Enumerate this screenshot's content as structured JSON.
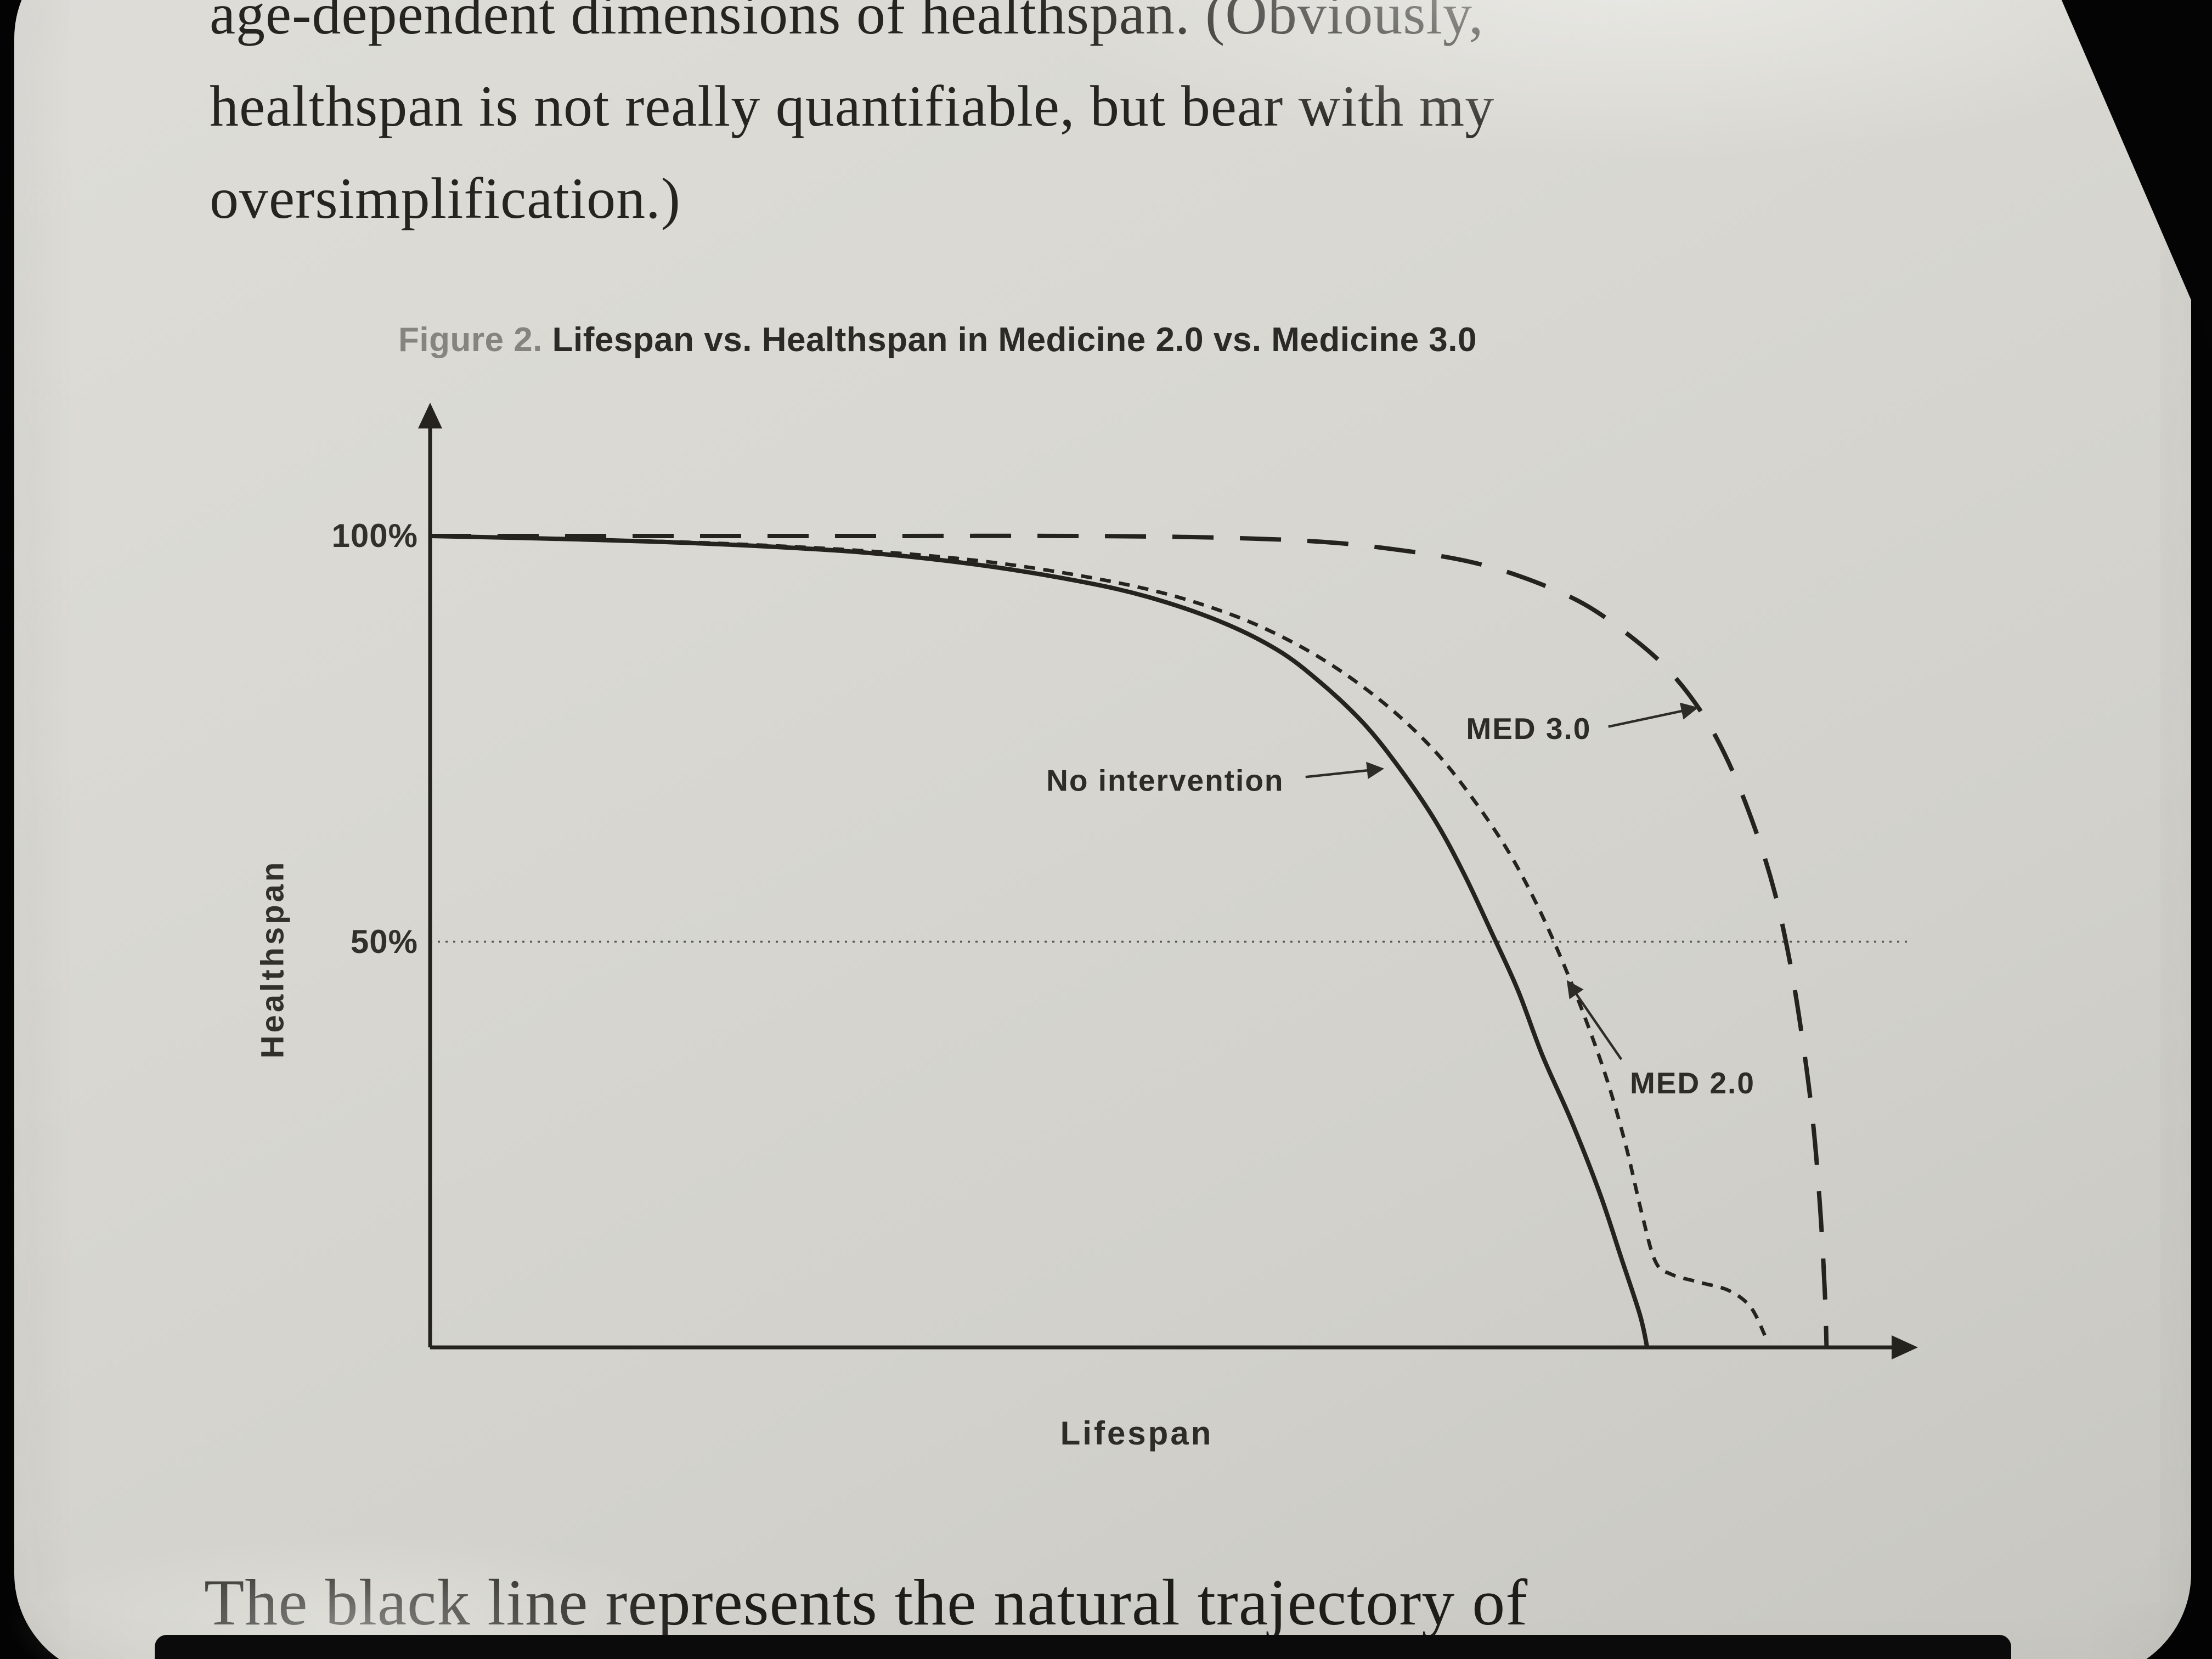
{
  "page": {
    "body_text_lines": [
      "age-dependent dimensions of healthspan. (Obviously,",
      "healthspan is not really quantifiable, but bear with my",
      "oversimplification.)"
    ],
    "bottom_text": "The black line represents the natural trajectory of"
  },
  "figure": {
    "caption_label": "Figure 2.",
    "caption_title": " Lifespan vs. Healthspan in Medicine 2.0 vs. Medicine 3.0"
  },
  "chart_data": {
    "type": "line",
    "title": "Figure 2. Lifespan vs. Healthspan in Medicine 2.0 vs. Medicine 3.0",
    "xlabel": "Lifespan",
    "ylabel": "Healthspan",
    "xlim": [
      0,
      100
    ],
    "ylim": [
      0,
      100
    ],
    "xtick_labels": [],
    "ytick_labels": [
      "100%",
      "50%"
    ],
    "ytick_values": [
      100,
      50
    ],
    "grid": "off",
    "legend": "none (inline annotations with arrows)",
    "reference_line": {
      "y": 50,
      "style": "dotted"
    },
    "ink_color": "#24231e",
    "series": [
      {
        "name": "No intervention",
        "style": "solid",
        "points": [
          [
            0,
            100
          ],
          [
            10,
            99.6
          ],
          [
            20,
            99
          ],
          [
            30,
            98
          ],
          [
            38,
            96.5
          ],
          [
            45,
            94.5
          ],
          [
            50,
            92.5
          ],
          [
            55,
            89.5
          ],
          [
            59,
            86
          ],
          [
            62,
            82
          ],
          [
            65,
            77
          ],
          [
            67.5,
            71.5
          ],
          [
            70,
            65
          ],
          [
            72,
            58.5
          ],
          [
            74,
            51
          ],
          [
            75.8,
            44
          ],
          [
            77.5,
            36
          ],
          [
            79.5,
            28
          ],
          [
            81.5,
            19
          ],
          [
            83,
            11
          ],
          [
            84.3,
            4
          ],
          [
            84.8,
            0
          ]
        ]
      },
      {
        "name": "MED 2.0",
        "style": "dashed",
        "points": [
          [
            0,
            100
          ],
          [
            10,
            99.6
          ],
          [
            20,
            99.1
          ],
          [
            30,
            98.2
          ],
          [
            38,
            97
          ],
          [
            45,
            95.2
          ],
          [
            51,
            93
          ],
          [
            56,
            90.2
          ],
          [
            60,
            87
          ],
          [
            63.5,
            83.3
          ],
          [
            67,
            78.6
          ],
          [
            70,
            73.5
          ],
          [
            72.5,
            68
          ],
          [
            75,
            61.5
          ],
          [
            77,
            55
          ],
          [
            78.8,
            48
          ],
          [
            80.5,
            40.5
          ],
          [
            82,
            33
          ],
          [
            83.3,
            25
          ],
          [
            84.5,
            16
          ],
          [
            85.4,
            10.5
          ],
          [
            86.5,
            9
          ],
          [
            88.5,
            8
          ],
          [
            90.5,
            7
          ],
          [
            92,
            5
          ],
          [
            93,
            1.5
          ]
        ]
      },
      {
        "name": "MED 3.0",
        "style": "long-dash",
        "points": [
          [
            0,
            100
          ],
          [
            15,
            100
          ],
          [
            30,
            100
          ],
          [
            45,
            100
          ],
          [
            55,
            99.8
          ],
          [
            62,
            99.3
          ],
          [
            67,
            98.4
          ],
          [
            72,
            97
          ],
          [
            76,
            95
          ],
          [
            80,
            92
          ],
          [
            83,
            88.5
          ],
          [
            86,
            84
          ],
          [
            88.5,
            78.5
          ],
          [
            90.5,
            72
          ],
          [
            92.3,
            64
          ],
          [
            93.7,
            56
          ],
          [
            94.8,
            47
          ],
          [
            95.7,
            37
          ],
          [
            96.4,
            27
          ],
          [
            96.9,
            16
          ],
          [
            97.2,
            6
          ],
          [
            97.3,
            0
          ]
        ]
      }
    ],
    "annotations": [
      {
        "text": "No intervention",
        "anchor": "end",
        "tx": 59.5,
        "ty": 68.6,
        "ax1": 61,
        "ay1": 70.3,
        "ax2": 66.3,
        "ay2": 71.3
      },
      {
        "text": "MED 3.0",
        "anchor": "end",
        "tx": 80.9,
        "ty": 75.0,
        "ax1": 82.1,
        "ay1": 76.5,
        "ax2": 88.2,
        "ay2": 78.8
      },
      {
        "text": "MED 2.0",
        "anchor": "start",
        "tx": 83.6,
        "ty": 31.3,
        "ax1": 83,
        "ay1": 35.5,
        "ax2": 79.3,
        "ay2": 45
      }
    ]
  }
}
